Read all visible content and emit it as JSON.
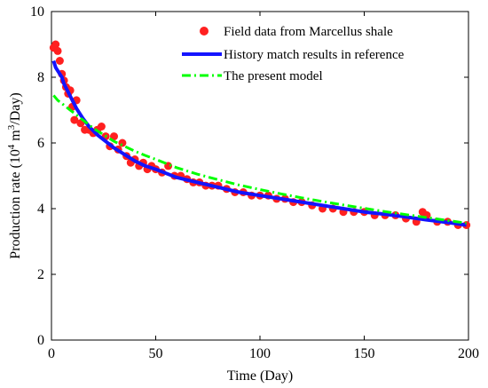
{
  "chart_data": {
    "type": "scatter",
    "xlabel": "Time (Day)",
    "ylabel": "Production rate (10^4 m^3/Day)",
    "ylabel_parts": {
      "main": "Production rate (10",
      "exp1": "4",
      "mid": " m",
      "exp2": "3",
      "end": "/Day)"
    },
    "xlim": [
      0,
      200
    ],
    "ylim": [
      0,
      10
    ],
    "xticks": [
      0,
      50,
      100,
      150,
      200
    ],
    "yticks": [
      0,
      2,
      4,
      6,
      8,
      10
    ],
    "grid": false,
    "legend_position": "top-right",
    "series": [
      {
        "name": "Field data from Marcellus shale",
        "style": "markers",
        "color": "#ff2020",
        "x": [
          1,
          2,
          3,
          4,
          5,
          6,
          7,
          8,
          9,
          10,
          11,
          12,
          14,
          16,
          18,
          20,
          22,
          24,
          26,
          28,
          30,
          32,
          34,
          36,
          38,
          40,
          42,
          44,
          46,
          48,
          50,
          53,
          56,
          59,
          62,
          65,
          68,
          71,
          74,
          77,
          80,
          84,
          88,
          92,
          96,
          100,
          104,
          108,
          112,
          116,
          120,
          125,
          130,
          135,
          140,
          145,
          150,
          155,
          160,
          165,
          170,
          175,
          178,
          180,
          185,
          190,
          195,
          199
        ],
        "y": [
          8.9,
          9.0,
          8.8,
          8.5,
          8.1,
          7.9,
          7.7,
          7.5,
          7.6,
          7.1,
          6.7,
          7.3,
          6.6,
          6.4,
          6.4,
          6.3,
          6.4,
          6.5,
          6.2,
          5.9,
          6.2,
          5.8,
          6.0,
          5.6,
          5.4,
          5.5,
          5.3,
          5.4,
          5.2,
          5.3,
          5.2,
          5.1,
          5.3,
          5.0,
          5.0,
          4.9,
          4.8,
          4.8,
          4.7,
          4.7,
          4.7,
          4.6,
          4.5,
          4.5,
          4.4,
          4.4,
          4.4,
          4.3,
          4.3,
          4.2,
          4.2,
          4.1,
          4.0,
          4.0,
          3.9,
          3.9,
          3.9,
          3.8,
          3.8,
          3.8,
          3.7,
          3.6,
          3.9,
          3.8,
          3.6,
          3.6,
          3.5,
          3.5
        ]
      },
      {
        "name": "History match results in reference",
        "style": "solid",
        "color": "#1414ff",
        "x": [
          1,
          2,
          3,
          4,
          5,
          6,
          8,
          10,
          12,
          15,
          18,
          22,
          26,
          30,
          35,
          40,
          45,
          50,
          60,
          70,
          80,
          90,
          100,
          110,
          120,
          130,
          140,
          150,
          160,
          170,
          180,
          190,
          199
        ],
        "y": [
          8.5,
          8.3,
          8.2,
          8.1,
          8.0,
          7.8,
          7.55,
          7.3,
          7.05,
          6.75,
          6.5,
          6.25,
          6.05,
          5.85,
          5.65,
          5.45,
          5.3,
          5.2,
          4.95,
          4.8,
          4.65,
          4.5,
          4.4,
          4.3,
          4.2,
          4.1,
          4.0,
          3.9,
          3.83,
          3.75,
          3.66,
          3.58,
          3.5
        ]
      },
      {
        "name": "The present model",
        "style": "dashdot",
        "color": "#00ff00",
        "x": [
          1,
          3,
          5,
          8,
          10,
          15,
          20,
          25,
          30,
          35,
          40,
          45,
          50,
          60,
          70,
          80,
          90,
          100,
          110,
          120,
          130,
          140,
          150,
          160,
          170,
          180,
          190,
          199
        ],
        "y": [
          7.45,
          7.3,
          7.2,
          7.05,
          6.95,
          6.7,
          6.45,
          6.25,
          6.05,
          5.9,
          5.75,
          5.62,
          5.5,
          5.25,
          5.05,
          4.88,
          4.72,
          4.58,
          4.45,
          4.33,
          4.22,
          4.11,
          4.01,
          3.91,
          3.82,
          3.73,
          3.64,
          3.56
        ]
      }
    ]
  }
}
